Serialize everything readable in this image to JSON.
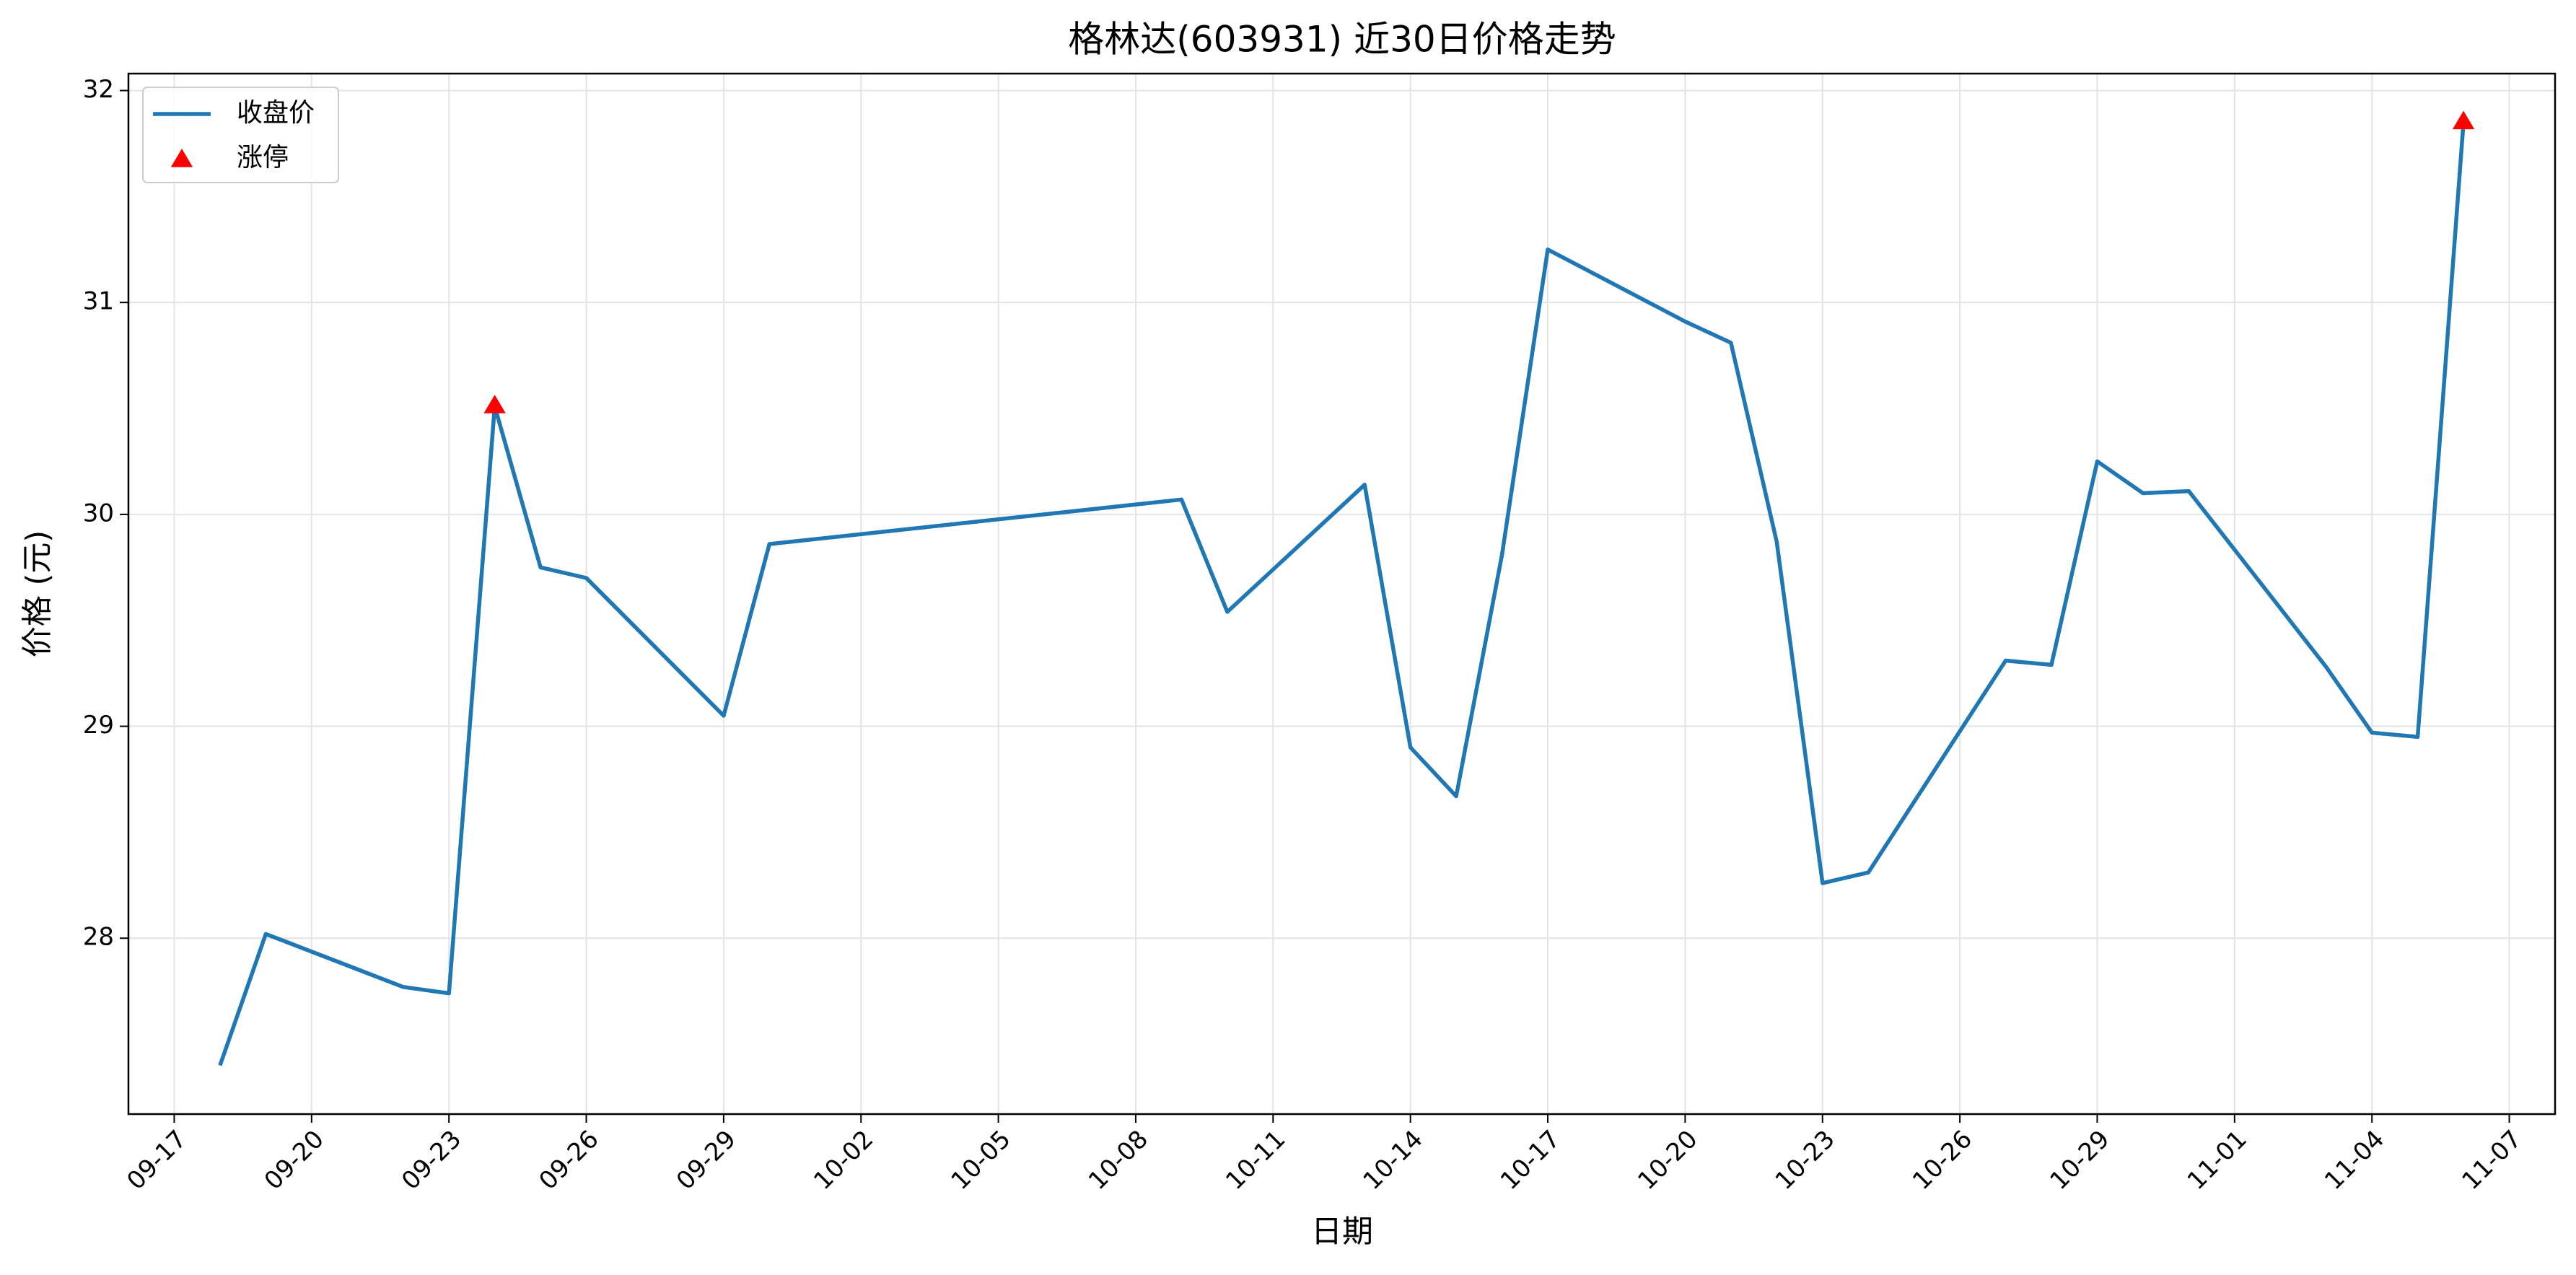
{
  "chart_data": {
    "type": "line",
    "title": "格林达(603931) 近30日价格走势",
    "x_label": "日期",
    "y_label": "价格 (元)",
    "xlim": [
      "09-16",
      "11-08"
    ],
    "xticks": [
      "09-17",
      "09-20",
      "09-23",
      "09-26",
      "09-29",
      "10-02",
      "10-05",
      "10-08",
      "10-11",
      "10-14",
      "10-17",
      "10-20",
      "10-23",
      "10-26",
      "10-29",
      "11-01",
      "11-04",
      "11-07"
    ],
    "ylim": [
      27.17,
      32.08
    ],
    "yticks": [
      28,
      29,
      30,
      31,
      32
    ],
    "grid": true,
    "legend": "upper left",
    "series": [
      {
        "name": "收盘价",
        "type": "line",
        "color": "#1f77b4",
        "x": [
          "09-18",
          "09-19",
          "09-22",
          "09-23",
          "09-24",
          "09-25",
          "09-26",
          "09-29",
          "09-30",
          "10-09",
          "10-10",
          "10-13",
          "10-14",
          "10-15",
          "10-16",
          "10-17",
          "10-20",
          "10-21",
          "10-22",
          "10-23",
          "10-24",
          "10-27",
          "10-28",
          "10-29",
          "10-30",
          "10-31",
          "11-03",
          "11-04",
          "11-05",
          "11-06"
        ],
        "values": [
          27.4,
          28.02,
          27.77,
          27.74,
          30.51,
          29.75,
          29.7,
          29.05,
          29.86,
          30.07,
          29.54,
          30.14,
          28.9,
          28.67,
          29.81,
          31.25,
          30.91,
          30.81,
          29.87,
          28.26,
          28.31,
          29.31,
          29.29,
          30.25,
          30.1,
          30.11,
          29.28,
          28.97,
          28.95,
          31.85
        ]
      },
      {
        "name": "涨停",
        "type": "scatter",
        "color": "#ff0000",
        "marker": "triangle",
        "x": [
          "09-24",
          "11-06"
        ],
        "values": [
          30.51,
          31.85
        ]
      }
    ]
  }
}
